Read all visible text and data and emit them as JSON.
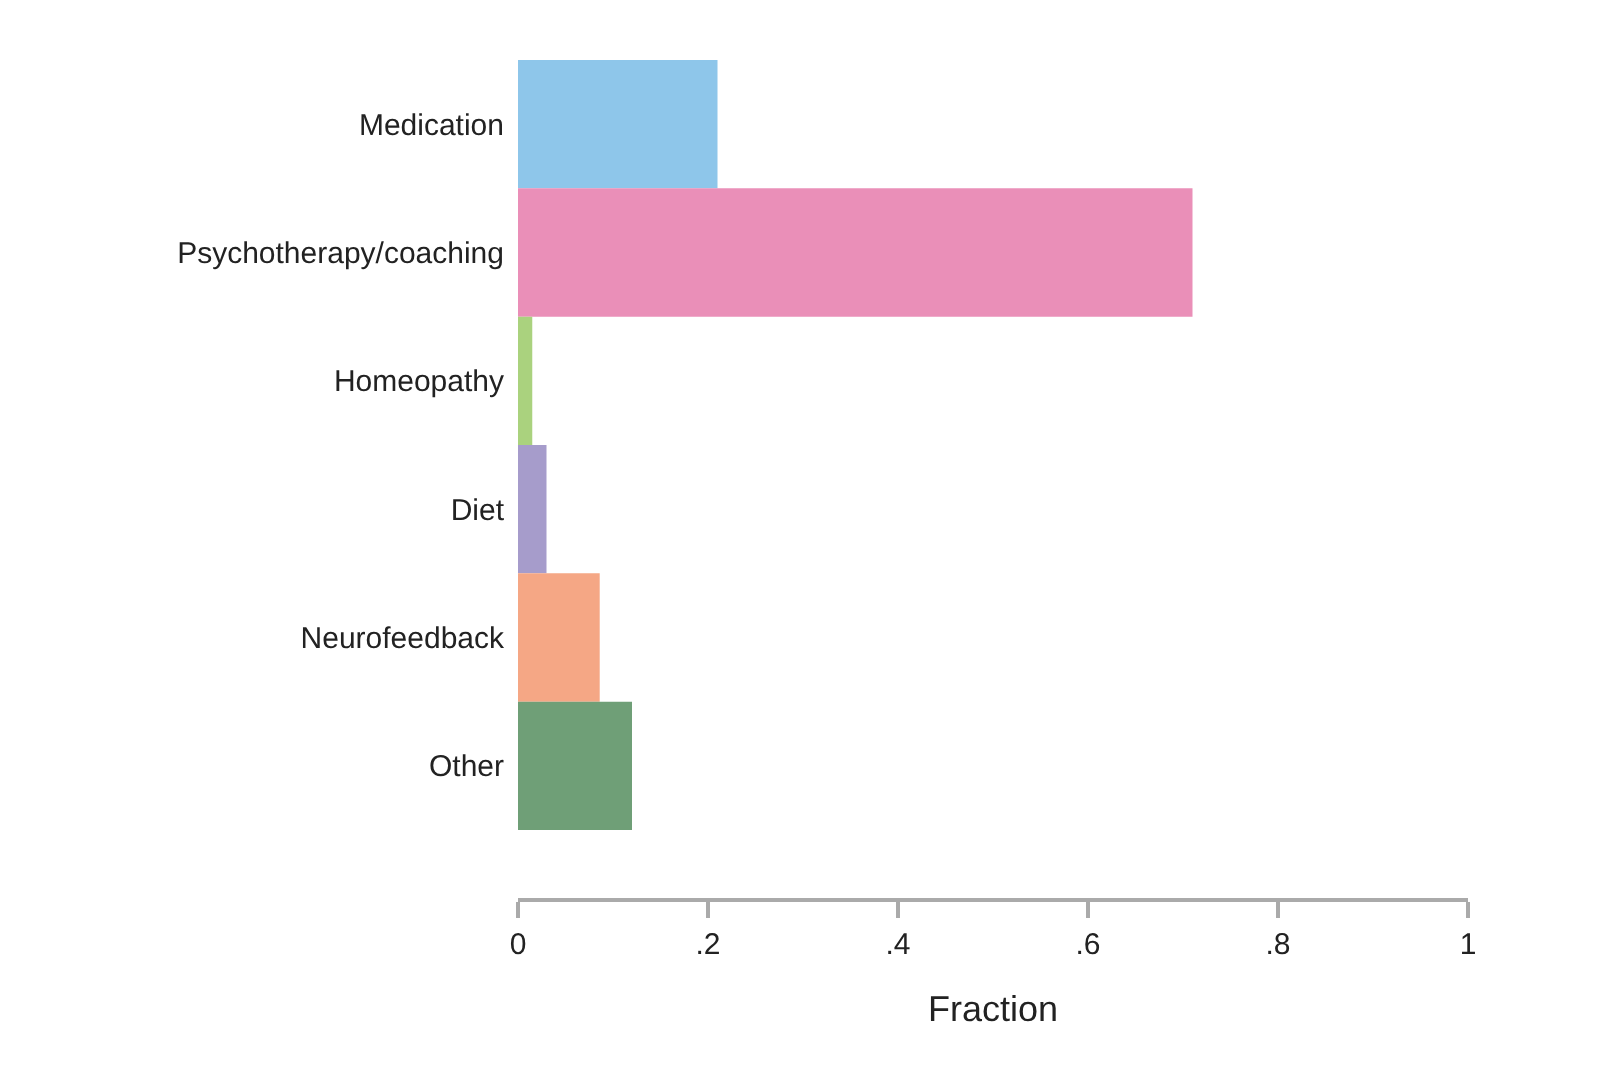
{
  "chart_data": {
    "type": "bar",
    "orientation": "horizontal",
    "xlabel": "Fraction",
    "categories": [
      "Medication",
      "Psychotherapy/coaching",
      "Homeopathy",
      "Diet",
      "Neurofeedback",
      "Other"
    ],
    "values": [
      0.21,
      0.71,
      0.015,
      0.03,
      0.086,
      0.12
    ],
    "colors": [
      "#8ec6ea",
      "#ea8fb8",
      "#aad27e",
      "#a69ccb",
      "#f5a785",
      "#6f9f77"
    ],
    "xlim": [
      0,
      1
    ],
    "xticks": [
      0,
      {
        "value": 0.2,
        "label": ".2"
      },
      {
        "value": 0.4,
        "label": ".4"
      },
      {
        "value": 0.6,
        "label": ".6"
      },
      {
        "value": 0.8,
        "label": ".8"
      },
      1
    ]
  }
}
